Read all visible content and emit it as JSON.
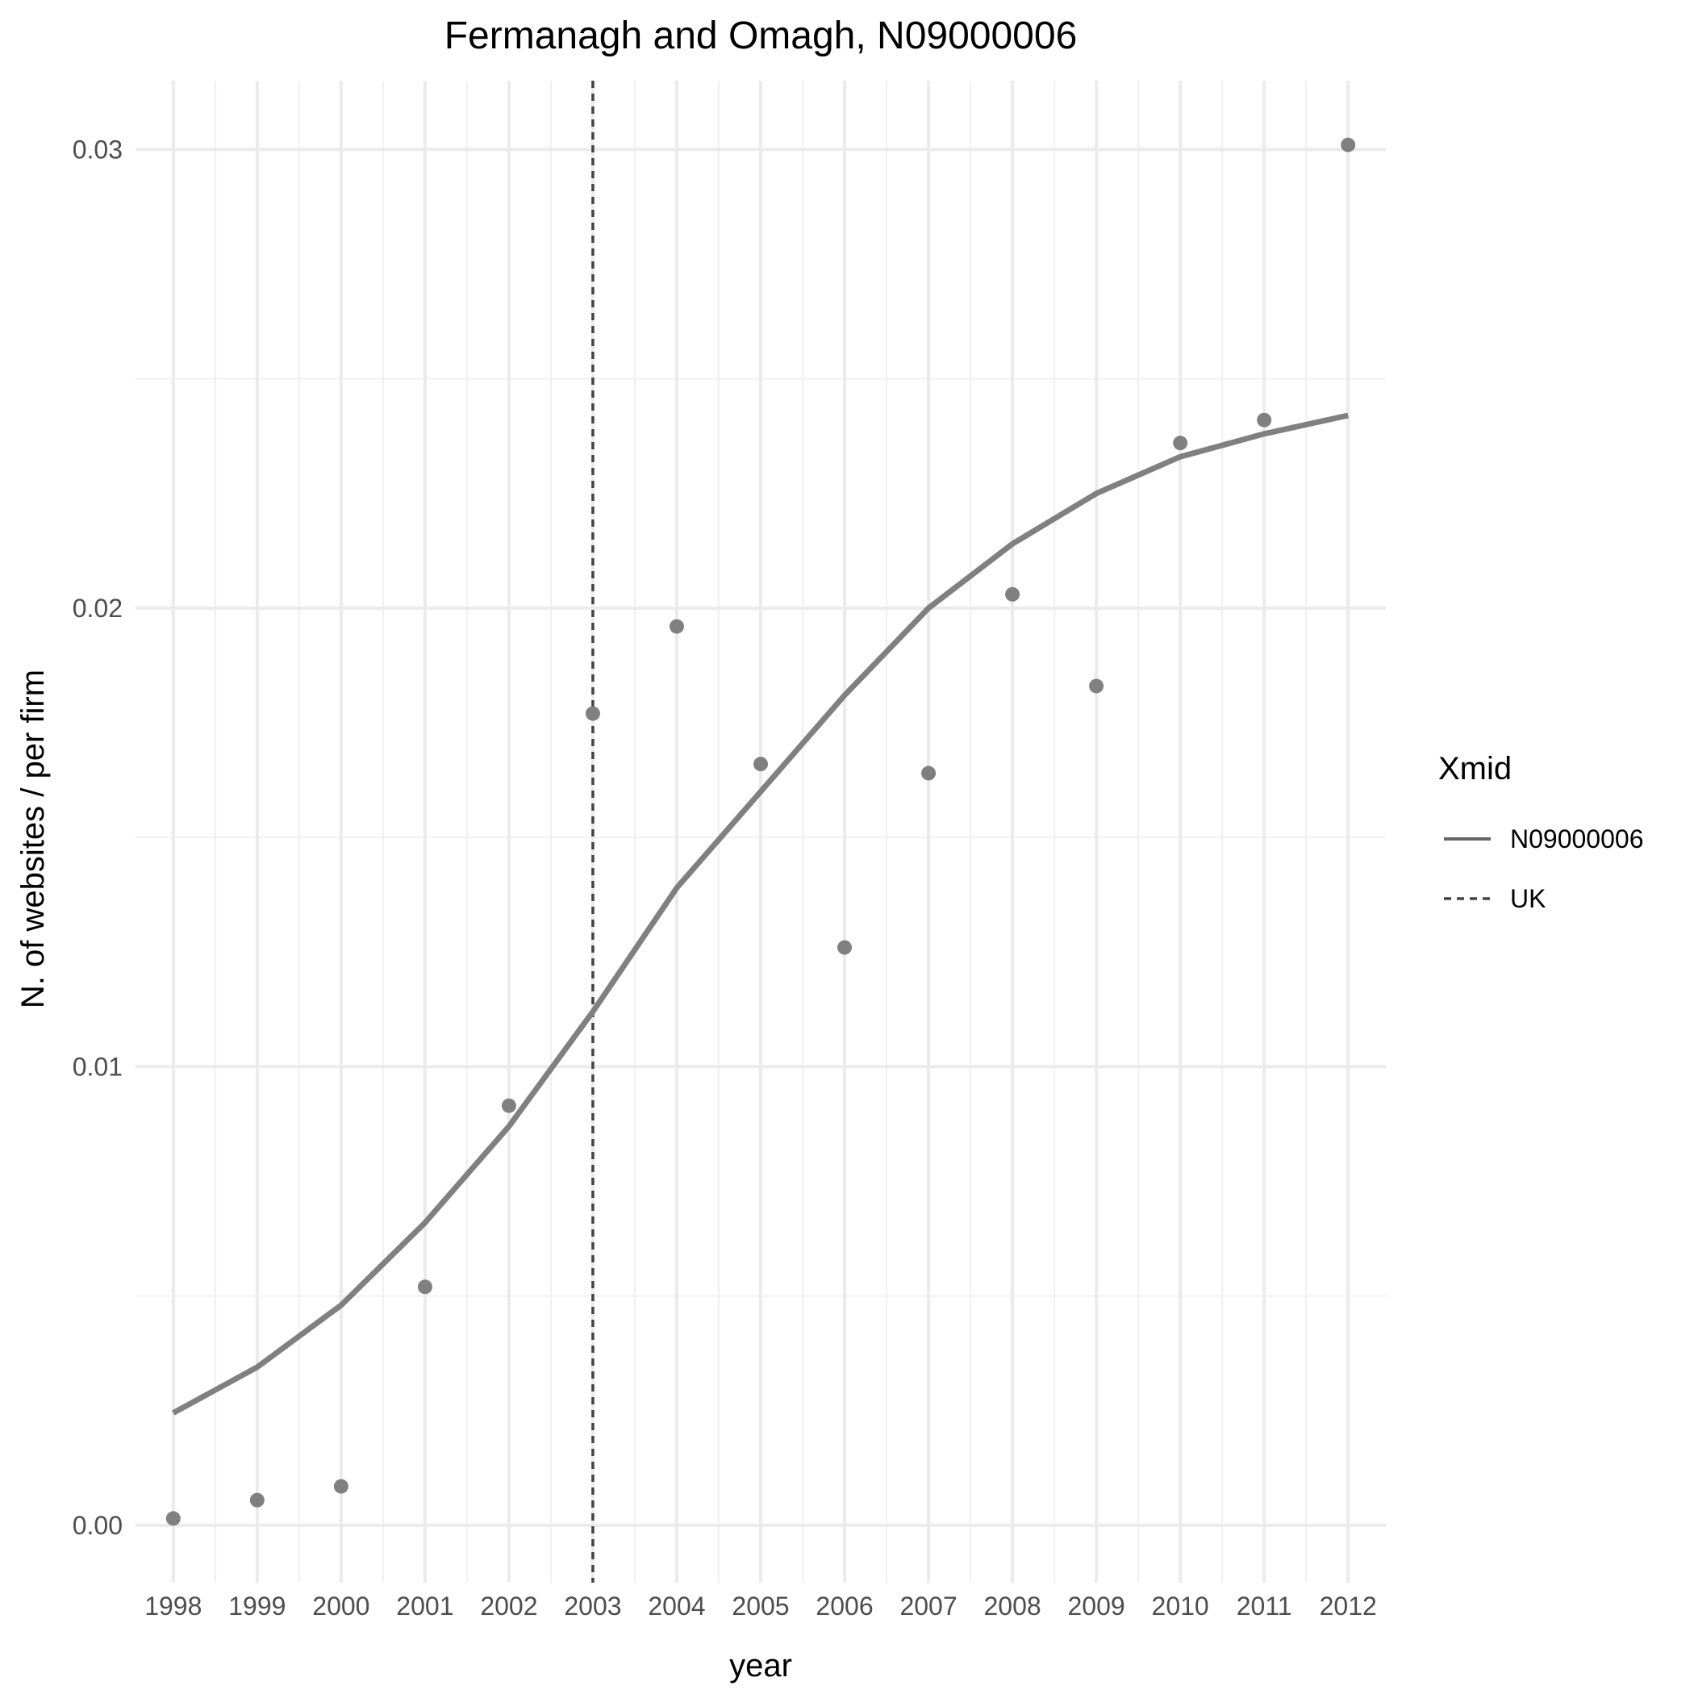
{
  "chart_data": {
    "type": "line",
    "title": "Fermanagh and Omagh, N09000006",
    "xlabel": "year",
    "ylabel": "N. of websites / per firm",
    "xlim": [
      1997.55,
      2012.45
    ],
    "ylim": [
      -0.00125,
      0.0315
    ],
    "x_ticks": [
      "1998",
      "1999",
      "2000",
      "2001",
      "2002",
      "2003",
      "2004",
      "2005",
      "2006",
      "2007",
      "2008",
      "2009",
      "2010",
      "2011",
      "2012"
    ],
    "y_ticks": [
      {
        "value": 0.0,
        "label": "0.00"
      },
      {
        "value": 0.01,
        "label": "0.01"
      },
      {
        "value": 0.02,
        "label": "0.02"
      },
      {
        "value": 0.03,
        "label": "0.03"
      }
    ],
    "y_minor": [
      0.005,
      0.015,
      0.025
    ],
    "grid": true,
    "points": {
      "x": [
        1998,
        1999,
        2000,
        2001,
        2002,
        2003,
        2004,
        2005,
        2006,
        2007,
        2008,
        2009,
        2010,
        2011,
        2012
      ],
      "y": [
        0.00015,
        0.00055,
        0.00085,
        0.0052,
        0.00915,
        0.0177,
        0.0196,
        0.0166,
        0.0126,
        0.0164,
        0.0203,
        0.0183,
        0.0236,
        0.0241,
        0.0301
      ],
      "color": "#808080"
    },
    "series": [
      {
        "name": "N09000006",
        "style": "solid",
        "color": "#808080",
        "x": [
          1998,
          1999,
          2000,
          2001,
          2002,
          2003,
          2004,
          2005,
          2006,
          2007,
          2008,
          2009,
          2010,
          2011,
          2012
        ],
        "y": [
          0.00245,
          0.00345,
          0.0048,
          0.0066,
          0.0087,
          0.0112,
          0.0139,
          0.016,
          0.0181,
          0.02,
          0.0214,
          0.0225,
          0.0233,
          0.0238,
          0.0242
        ]
      }
    ],
    "vline": {
      "name": "UK",
      "x": 2003,
      "style": "dashed",
      "color": "#444444"
    },
    "legend": {
      "title": "Xmid",
      "position": "right",
      "entries": [
        {
          "label": "N09000006",
          "style": "solid"
        },
        {
          "label": "UK",
          "style": "dashed"
        }
      ]
    }
  }
}
